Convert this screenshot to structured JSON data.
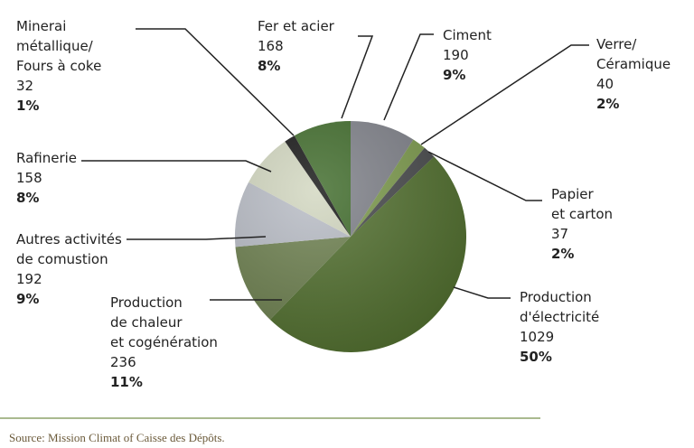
{
  "chart_data": {
    "type": "pie",
    "categories": [
      "Ciment",
      "Verre/\nCéramique",
      "Papier\net carton",
      "Production\nd'électricité",
      "Production\nde chaleur\net cogénération",
      "Autres activités\nde comustion",
      "Rafinerie",
      "Minerai\nmétallique/\nFours à coke",
      "Fer et acier"
    ],
    "values": [
      190,
      40,
      37,
      1029,
      236,
      192,
      158,
      32,
      168
    ],
    "shares": [
      "9%",
      "2%",
      "2%",
      "50%",
      "11%",
      "9%",
      "8%",
      "1%",
      "8%"
    ],
    "colors": [
      "#7f8189",
      "#7c9a4c",
      "#47494b",
      "#52702f",
      "#6e8150",
      "#b9bdc6",
      "#d2d7c0",
      "#141414",
      "#3f6b2a"
    ],
    "source": "Source: Mission Climat of Caisse des Dépôts."
  }
}
